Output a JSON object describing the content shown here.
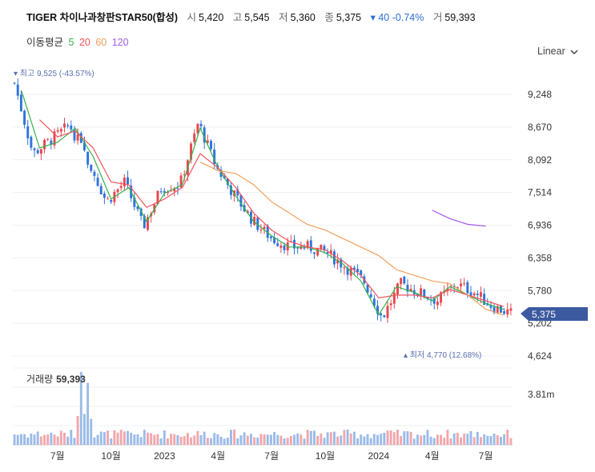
{
  "header": {
    "name": "TIGER 차이나과창판STAR50(합성)",
    "open_label": "시",
    "open": "5,420",
    "high_label": "고",
    "high": "5,545",
    "low_label": "저",
    "low": "5,360",
    "close_label": "종",
    "close": "5,375",
    "change": "▾ 40 -0.74%",
    "volume_label": "거",
    "volume": "59,393"
  },
  "moving_average": {
    "label": "이동평균",
    "periods": [
      {
        "text": "5",
        "color": "#35b24a"
      },
      {
        "text": "20",
        "color": "#f2535b"
      },
      {
        "text": "60",
        "color": "#f3a05b"
      },
      {
        "text": "120",
        "color": "#a35ce8"
      }
    ]
  },
  "scale_selector": {
    "label": "Linear",
    "icon": "chevron-down-icon"
  },
  "price_axis": {
    "ticks": [
      "9,248",
      "8,670",
      "8,092",
      "7,514",
      "6,936",
      "6,358",
      "5,780",
      "5,202",
      "4,624"
    ]
  },
  "volume_axis": {
    "tick": "3.81m"
  },
  "time_axis": {
    "labels": [
      "7월",
      "10월",
      "2023",
      "4월",
      "7월",
      "10월",
      "2024",
      "4월",
      "7월"
    ]
  },
  "annotations": {
    "max": "▾ 최고 9,525 (-43.57%)",
    "min": "▴ 최저 4,770 (12.68%)",
    "last_price": "5,375",
    "volume_label": "거래량",
    "volume_value": "59,393"
  },
  "colors": {
    "up": "#e8474e",
    "down": "#2f74d9",
    "price_tag": "#3c5aa0",
    "header_down": "#2b6fd6"
  },
  "chart_data": {
    "type": "candlestick",
    "y_range": [
      4624,
      9826
    ],
    "price_series": {
      "x": [
        "2022-05",
        "2022-06",
        "2022-07",
        "2022-08",
        "2022-09",
        "2022-10",
        "2022-11",
        "2022-12",
        "2023-01",
        "2023-02",
        "2023-03",
        "2023-04",
        "2023-05",
        "2023-06",
        "2023-07",
        "2023-08",
        "2023-09",
        "2023-10",
        "2023-11",
        "2023-12",
        "2024-01",
        "2024-02",
        "2024-03",
        "2024-04",
        "2024-05",
        "2024-06",
        "2024-07",
        "2024-08"
      ],
      "close_approx": [
        9450,
        8200,
        8450,
        8700,
        8100,
        7350,
        7700,
        6900,
        7600,
        7650,
        8750,
        7950,
        7450,
        7000,
        6700,
        6550,
        6550,
        6450,
        6200,
        5950,
        5300,
        5900,
        5750,
        5600,
        5900,
        5750,
        5500,
        5375
      ],
      "ma5": [
        9300,
        8300,
        8400,
        8650,
        8150,
        7400,
        7600,
        7000,
        7500,
        7650,
        8650,
        7950,
        7450,
        7000,
        6750,
        6550,
        6550,
        6450,
        6250,
        5950,
        5350,
        5850,
        5750,
        5600,
        5850,
        5700,
        5550,
        5450
      ],
      "ma20": [
        null,
        8800,
        8500,
        8600,
        8300,
        7700,
        7650,
        7250,
        7400,
        7600,
        8200,
        7950,
        7600,
        7150,
        6850,
        6650,
        6550,
        6500,
        6300,
        6050,
        5650,
        5700,
        5700,
        5650,
        5800,
        5700,
        5600,
        5500
      ],
      "ma60": [
        null,
        null,
        null,
        null,
        null,
        null,
        null,
        null,
        null,
        null,
        8050,
        7900,
        7850,
        7650,
        7350,
        7150,
        6950,
        6850,
        6700,
        6550,
        6400,
        6150,
        6050,
        5950,
        5900,
        5700,
        5450,
        5350
      ],
      "ma120": [
        null,
        null,
        null,
        null,
        null,
        null,
        null,
        null,
        null,
        null,
        null,
        null,
        null,
        null,
        null,
        null,
        null,
        null,
        null,
        null,
        null,
        null,
        null,
        7200,
        7050,
        6950,
        6920,
        null
      ]
    },
    "high": 9525,
    "low": 4770,
    "last": 5375,
    "volume_max": "3.81m",
    "last_volume": 59393
  }
}
